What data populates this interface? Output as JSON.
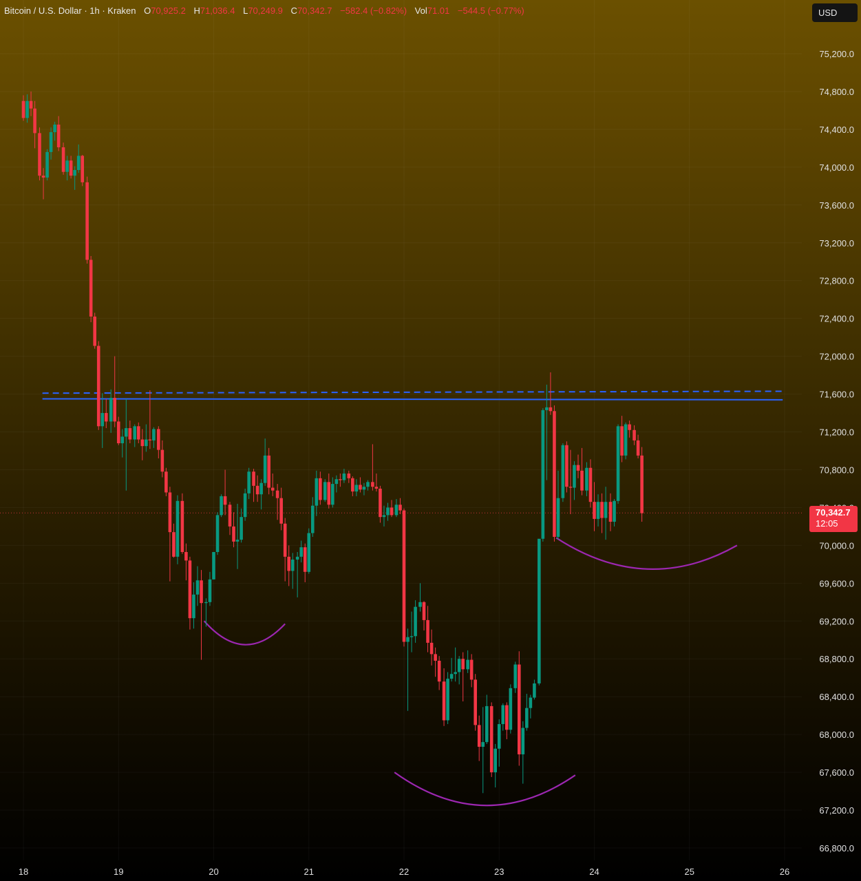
{
  "header": {
    "symbol": "Bitcoin / U.S. Dollar · 1h · Kraken",
    "open_label": "O",
    "open": "70,925.2",
    "high_label": "H",
    "high": "71,036.4",
    "low_label": "L",
    "low": "70,249.9",
    "close_label": "C",
    "close": "70,342.7",
    "change": "−582.4 (−0.82%)",
    "vol_label": "Vol",
    "vol": "71.01",
    "vol_change": "−544.5 (−0.77%)"
  },
  "currency_button": "USD",
  "last_price": {
    "value": "70,342.7",
    "countdown": "12:05"
  },
  "colors": {
    "up": "#089981",
    "down": "#f23645",
    "resistance": "#2962ff",
    "arcs": "#9c27b0"
  },
  "chart_data": {
    "type": "candlestick",
    "title": "Bitcoin / U.S. Dollar · 1h · Kraken",
    "ylim": [
      66800,
      75200
    ],
    "y_ticks": [
      "75,200.0",
      "74,800.0",
      "74,400.0",
      "74,000.0",
      "73,600.0",
      "73,200.0",
      "72,800.0",
      "72,400.0",
      "72,000.0",
      "71,600.0",
      "71,200.0",
      "70,800.0",
      "70,400.0",
      "70,000.0",
      "69,600.0",
      "69,200.0",
      "68,800.0",
      "68,400.0",
      "68,000.0",
      "67,600.0",
      "67,200.0",
      "66,800.0"
    ],
    "x_ticks": [
      "18",
      "19",
      "20",
      "21",
      "22",
      "23",
      "24",
      "25",
      "26"
    ],
    "last_price": 70342.7,
    "resistance_lines": [
      {
        "style": "solid",
        "price_start": 71550,
        "price_end": 71540
      },
      {
        "style": "dashed",
        "price_start": 71610,
        "price_end": 71630
      }
    ],
    "rounded_bottoms": [
      {
        "start_day": 19.9,
        "start_price": 69200,
        "low_price": 68950,
        "end_day": 20.75,
        "end_price": 69170
      },
      {
        "start_day": 21.9,
        "start_price": 67600,
        "low_price": 67250,
        "end_day": 23.8,
        "end_price": 67570
      },
      {
        "start_day": 23.6,
        "start_price": 70080,
        "low_price": 69750,
        "end_day": 25.5,
        "end_price": 70000
      }
    ],
    "candles": [
      [
        18.0,
        74700,
        74760,
        74490,
        74520
      ],
      [
        18.04,
        74520,
        74770,
        74470,
        74700
      ],
      [
        18.08,
        74700,
        74800,
        74540,
        74620
      ],
      [
        18.12,
        74620,
        74700,
        74200,
        74360
      ],
      [
        18.17,
        74360,
        74420,
        73860,
        73910
      ],
      [
        18.21,
        73910,
        73990,
        73660,
        73890
      ],
      [
        18.25,
        73890,
        74190,
        73860,
        74160
      ],
      [
        18.29,
        74160,
        74420,
        74080,
        74370
      ],
      [
        18.33,
        74370,
        74480,
        74280,
        74450
      ],
      [
        18.37,
        74450,
        74540,
        74170,
        74210
      ],
      [
        18.42,
        74210,
        74260,
        73920,
        73950
      ],
      [
        18.46,
        73950,
        74120,
        73860,
        74070
      ],
      [
        18.5,
        74070,
        74120,
        73880,
        73910
      ],
      [
        18.54,
        73910,
        74010,
        73760,
        73970
      ],
      [
        18.58,
        73970,
        74240,
        73940,
        74120
      ],
      [
        18.62,
        74120,
        74130,
        73800,
        73840
      ],
      [
        18.67,
        73840,
        73900,
        72980,
        73020
      ],
      [
        18.71,
        73020,
        73060,
        72360,
        72420
      ],
      [
        18.75,
        72420,
        72460,
        72080,
        72110
      ],
      [
        18.79,
        72110,
        72160,
        71220,
        71260
      ],
      [
        18.83,
        71260,
        71610,
        71030,
        71400
      ],
      [
        18.87,
        71400,
        71550,
        71240,
        71310
      ],
      [
        18.92,
        71310,
        71650,
        71190,
        71560
      ],
      [
        18.96,
        71560,
        72000,
        71250,
        71310
      ],
      [
        19.0,
        71310,
        71360,
        71060,
        71080
      ],
      [
        19.04,
        71080,
        71230,
        70930,
        71150
      ],
      [
        19.08,
        71150,
        71550,
        70580,
        71240
      ],
      [
        19.12,
        71240,
        71320,
        71080,
        71120
      ],
      [
        19.17,
        71120,
        71280,
        71040,
        71260
      ],
      [
        19.21,
        71260,
        71300,
        71080,
        71120
      ],
      [
        19.25,
        71120,
        71230,
        70900,
        71050
      ],
      [
        19.29,
        71050,
        71280,
        70990,
        71120
      ],
      [
        19.33,
        71120,
        71640,
        71020,
        71110
      ],
      [
        19.37,
        71110,
        71250,
        71030,
        71230
      ],
      [
        19.42,
        71230,
        71260,
        70920,
        71010
      ],
      [
        19.46,
        71010,
        71110,
        70720,
        70780
      ],
      [
        19.5,
        70780,
        70820,
        70520,
        70560
      ],
      [
        19.54,
        70560,
        70620,
        69620,
        70140
      ],
      [
        19.58,
        70140,
        70230,
        69870,
        69880
      ],
      [
        19.62,
        69880,
        70530,
        69800,
        70470
      ],
      [
        19.67,
        70470,
        70550,
        69910,
        69930
      ],
      [
        19.71,
        69930,
        70020,
        69630,
        69840
      ],
      [
        19.75,
        69840,
        69880,
        69110,
        69230
      ],
      [
        19.79,
        69230,
        69610,
        69120,
        69480
      ],
      [
        19.83,
        69480,
        69780,
        69360,
        69630
      ],
      [
        19.87,
        69630,
        69740,
        68790,
        69390
      ],
      [
        19.92,
        69390,
        69440,
        69140,
        69400
      ],
      [
        19.96,
        69400,
        69720,
        69360,
        69640
      ],
      [
        20.0,
        69640,
        69930,
        69640,
        69930
      ],
      [
        20.04,
        69930,
        70350,
        69900,
        70320
      ],
      [
        20.08,
        70320,
        70540,
        70300,
        70520
      ],
      [
        20.12,
        70520,
        70800,
        70320,
        70430
      ],
      [
        20.17,
        70430,
        70460,
        70110,
        70200
      ],
      [
        20.21,
        70200,
        70350,
        69980,
        70040
      ],
      [
        20.25,
        70040,
        70440,
        69750,
        70060
      ],
      [
        20.29,
        70060,
        70390,
        70030,
        70300
      ],
      [
        20.33,
        70300,
        70600,
        70260,
        70550
      ],
      [
        20.37,
        70550,
        70820,
        70490,
        70780
      ],
      [
        20.42,
        70780,
        70810,
        70460,
        70630
      ],
      [
        20.46,
        70630,
        70740,
        70460,
        70540
      ],
      [
        20.5,
        70540,
        70700,
        70380,
        70660
      ],
      [
        20.54,
        70660,
        71130,
        70630,
        70950
      ],
      [
        20.58,
        70950,
        71030,
        70540,
        70610
      ],
      [
        20.62,
        70610,
        70760,
        70520,
        70580
      ],
      [
        20.67,
        70580,
        70650,
        70270,
        70500
      ],
      [
        20.71,
        70500,
        70610,
        70160,
        70230
      ],
      [
        20.75,
        70230,
        70290,
        69620,
        69880
      ],
      [
        20.79,
        69880,
        70000,
        69570,
        69730
      ],
      [
        20.83,
        69730,
        69920,
        69540,
        69850
      ],
      [
        20.88,
        69850,
        69930,
        69450,
        69880
      ],
      [
        20.92,
        69880,
        70050,
        69820,
        69980
      ],
      [
        20.96,
        69980,
        70020,
        69610,
        69720
      ],
      [
        21.0,
        69720,
        70180,
        69700,
        70130
      ],
      [
        21.04,
        70130,
        70510,
        70090,
        70420
      ],
      [
        21.08,
        70420,
        70790,
        70310,
        70710
      ],
      [
        21.12,
        70710,
        70780,
        70430,
        70480
      ],
      [
        21.17,
        70480,
        70700,
        70460,
        70670
      ],
      [
        21.21,
        70670,
        70760,
        70390,
        70430
      ],
      [
        21.25,
        70430,
        70720,
        70400,
        70650
      ],
      [
        21.29,
        70650,
        70740,
        70560,
        70700
      ],
      [
        21.33,
        70700,
        70760,
        70620,
        70690
      ],
      [
        21.37,
        70690,
        70810,
        70660,
        70760
      ],
      [
        21.42,
        70760,
        70790,
        70660,
        70710
      ],
      [
        21.46,
        70710,
        70730,
        70520,
        70570
      ],
      [
        21.5,
        70570,
        70700,
        70520,
        70640
      ],
      [
        21.54,
        70640,
        70720,
        70560,
        70590
      ],
      [
        21.58,
        70590,
        70660,
        70530,
        70620
      ],
      [
        21.62,
        70620,
        70690,
        70580,
        70670
      ],
      [
        21.67,
        70670,
        71070,
        70580,
        70620
      ],
      [
        21.71,
        70620,
        70760,
        70570,
        70600
      ],
      [
        21.75,
        70600,
        70630,
        70240,
        70300
      ],
      [
        21.79,
        70300,
        70420,
        70200,
        70320
      ],
      [
        21.83,
        70320,
        70450,
        70260,
        70400
      ],
      [
        21.87,
        70400,
        70480,
        70300,
        70320
      ],
      [
        21.92,
        70320,
        70490,
        70300,
        70430
      ],
      [
        21.96,
        70430,
        70500,
        70330,
        70370
      ],
      [
        22.0,
        70370,
        70390,
        68930,
        68980
      ],
      [
        22.04,
        68980,
        69120,
        68250,
        69030
      ],
      [
        22.08,
        69030,
        69300,
        68870,
        69040
      ],
      [
        22.12,
        69040,
        69420,
        68970,
        69350
      ],
      [
        22.17,
        69350,
        69600,
        69300,
        69400
      ],
      [
        22.21,
        69400,
        69410,
        69100,
        69210
      ],
      [
        22.25,
        69210,
        69360,
        68870,
        68970
      ],
      [
        22.29,
        68970,
        69110,
        68730,
        68850
      ],
      [
        22.33,
        68850,
        68920,
        68610,
        68780
      ],
      [
        22.37,
        68780,
        68830,
        68470,
        68560
      ],
      [
        22.42,
        68560,
        68700,
        68090,
        68150
      ],
      [
        22.46,
        68150,
        68660,
        68110,
        68590
      ],
      [
        22.5,
        68590,
        68810,
        68560,
        68640
      ],
      [
        22.54,
        68640,
        68920,
        68560,
        68660
      ],
      [
        22.58,
        68660,
        68830,
        68530,
        68800
      ],
      [
        22.62,
        68800,
        68870,
        68350,
        68690
      ],
      [
        22.67,
        68690,
        68890,
        68650,
        68790
      ],
      [
        22.71,
        68790,
        68850,
        68500,
        68580
      ],
      [
        22.75,
        68580,
        68640,
        68040,
        68100
      ],
      [
        22.79,
        68100,
        68200,
        67720,
        67870
      ],
      [
        22.83,
        67870,
        68290,
        67380,
        67920
      ],
      [
        22.87,
        67920,
        68420,
        67900,
        68300
      ],
      [
        22.92,
        68300,
        68340,
        67550,
        67600
      ],
      [
        22.96,
        67600,
        67900,
        67440,
        67850
      ],
      [
        23.0,
        67850,
        68160,
        67660,
        68110
      ],
      [
        23.04,
        68110,
        68330,
        68040,
        68310
      ],
      [
        23.08,
        68310,
        68340,
        67950,
        68050
      ],
      [
        23.12,
        68050,
        68530,
        68010,
        68490
      ],
      [
        23.17,
        68490,
        68770,
        68440,
        68740
      ],
      [
        23.21,
        68740,
        68880,
        67670,
        67790
      ],
      [
        23.25,
        67790,
        68140,
        67480,
        68070
      ],
      [
        23.29,
        68070,
        68430,
        68040,
        68280
      ],
      [
        23.33,
        68280,
        68420,
        68170,
        68390
      ],
      [
        23.37,
        68390,
        68580,
        68370,
        68540
      ],
      [
        23.42,
        68540,
        70040,
        68520,
        70070
      ],
      [
        23.46,
        70070,
        71450,
        70040,
        71430
      ],
      [
        23.5,
        71430,
        71700,
        70690,
        71460
      ],
      [
        23.54,
        71460,
        71830,
        71380,
        71420
      ],
      [
        23.58,
        71420,
        71480,
        70040,
        70090
      ],
      [
        23.62,
        70090,
        70790,
        70060,
        70500
      ],
      [
        23.67,
        70500,
        71080,
        70460,
        71060
      ],
      [
        23.71,
        71060,
        71100,
        70560,
        70620
      ],
      [
        23.75,
        70620,
        71010,
        70330,
        70610
      ],
      [
        23.79,
        70610,
        70890,
        70480,
        70850
      ],
      [
        23.83,
        70850,
        70960,
        70710,
        70790
      ],
      [
        23.87,
        70790,
        71030,
        70530,
        70580
      ],
      [
        23.92,
        70580,
        70880,
        70520,
        70820
      ],
      [
        23.96,
        70820,
        70910,
        70400,
        70460
      ],
      [
        24.0,
        70460,
        70670,
        70150,
        70280
      ],
      [
        24.04,
        70280,
        70540,
        70200,
        70460
      ],
      [
        24.08,
        70460,
        70550,
        70130,
        70290
      ],
      [
        24.12,
        70290,
        70620,
        70060,
        70460
      ],
      [
        24.17,
        70460,
        70550,
        70150,
        70250
      ],
      [
        24.21,
        70250,
        70490,
        70200,
        70470
      ],
      [
        24.25,
        70470,
        71280,
        70440,
        71260
      ],
      [
        24.29,
        71260,
        71370,
        70880,
        70950
      ],
      [
        24.33,
        70950,
        71300,
        70910,
        71280
      ],
      [
        24.37,
        71280,
        71320,
        71140,
        71220
      ],
      [
        24.42,
        71220,
        71270,
        71060,
        71110
      ],
      [
        24.46,
        71110,
        71170,
        70920,
        70950
      ],
      [
        24.5,
        70950,
        71040,
        70250,
        70340
      ]
    ]
  }
}
